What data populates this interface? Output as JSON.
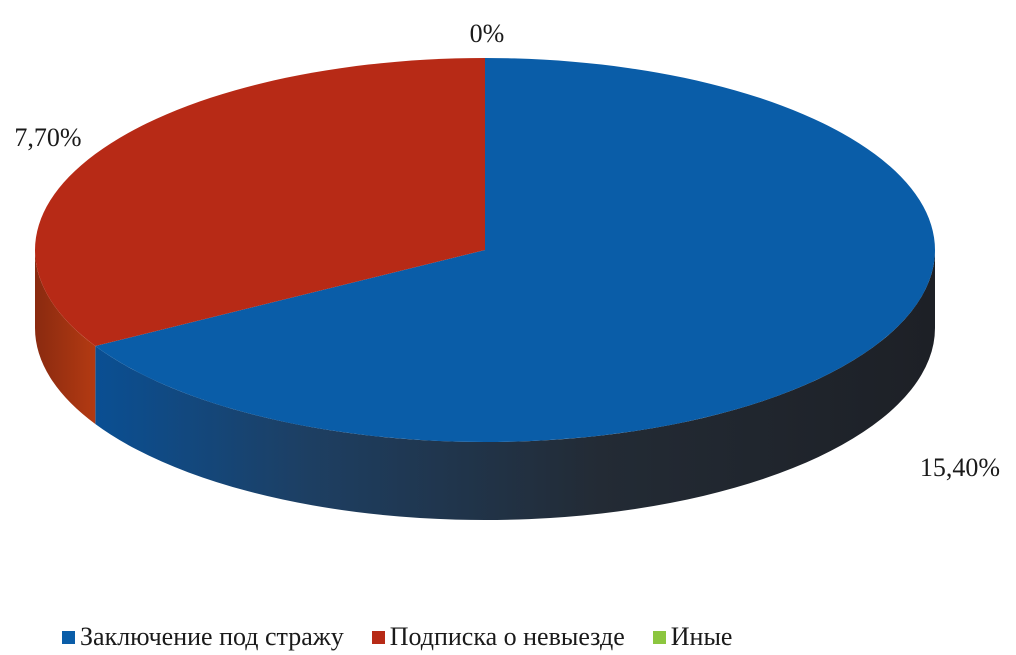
{
  "chart_data": {
    "type": "pie",
    "style": "3d",
    "categories": [
      "Заключение под стражу",
      "Подписка о невыезде",
      "Иные"
    ],
    "values": [
      15.4,
      7.7,
      0
    ],
    "data_labels": [
      "15,40%",
      "7,70%",
      "0%"
    ],
    "colors": [
      "#0a5da8",
      "#b72a16",
      "#8cc63f"
    ],
    "legend_position": "bottom"
  }
}
